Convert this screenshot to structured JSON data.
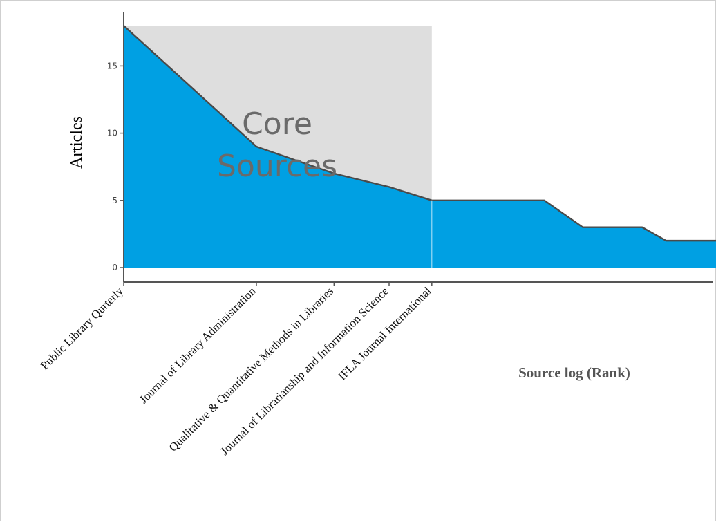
{
  "chart_data": {
    "type": "area",
    "ylabel": "Articles",
    "xlabel": "Source log (Rank)",
    "annotation": [
      "Core",
      "Sources"
    ],
    "ylim": [
      -1,
      18
    ],
    "y_ticks": [
      0,
      5,
      10,
      15
    ],
    "grid": false,
    "colors": {
      "fill": "#00a0e3",
      "core_zone": "#dedede",
      "line": "#4a4a4a"
    },
    "core_zone": {
      "from_rank": 1,
      "to_rank": 5
    },
    "x_log_scale": true,
    "x_ticks": [
      {
        "rank": 1,
        "label": "Public Library Qurterly"
      },
      {
        "rank": 2,
        "label": "Journal of Library Administration"
      },
      {
        "rank": 3,
        "label": "Qualitative & Quantitative Methods in Libraries"
      },
      {
        "rank": 4,
        "label": "Journal of Librarianship and Information Science"
      },
      {
        "rank": 5,
        "label": "IFLA Journal International"
      }
    ],
    "points": [
      {
        "rank": 1,
        "articles": 18
      },
      {
        "rank": 2,
        "articles": 9
      },
      {
        "rank": 3,
        "articles": 7
      },
      {
        "rank": 4,
        "articles": 6
      },
      {
        "rank": 5,
        "articles": 5
      },
      {
        "rank": 9,
        "articles": 5
      },
      {
        "rank": 11,
        "articles": 3
      },
      {
        "rank": 15,
        "articles": 3
      },
      {
        "rank": 17,
        "articles": 2
      },
      {
        "rank": 78,
        "articles": 2
      },
      {
        "rank": 84,
        "articles": 1.5
      }
    ]
  }
}
